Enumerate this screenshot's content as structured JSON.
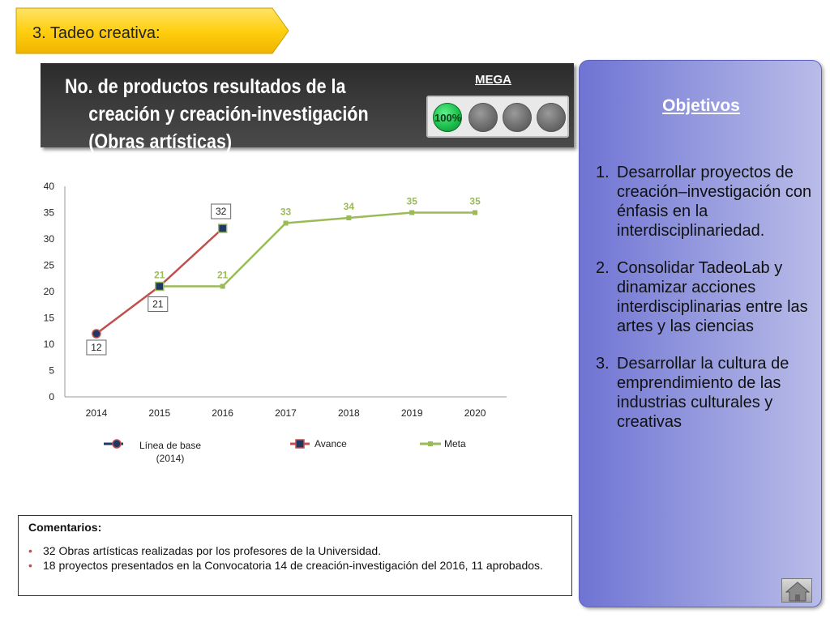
{
  "section": {
    "label": "3. Tadeo creativa:"
  },
  "header": {
    "title_line1": "No. de productos resultados de la",
    "title_line2": "creación y creación-investigación",
    "title_line3": "(Obras artísticas)",
    "mega_label": "MEGA",
    "meter": {
      "value_label": "100%",
      "active_dots": 1,
      "total_dots": 4
    }
  },
  "objectives": {
    "title": "Objetivos",
    "items": [
      {
        "num": "1.",
        "text": "Desarrollar proyectos de creación–investigación con énfasis en la interdisciplinariedad."
      },
      {
        "num": "2.",
        "text": "Consolidar TadeoLab y dinamizar acciones interdisciplinarias entre las artes y las ciencias"
      },
      {
        "num": "3.",
        "text": "Desarrollar la cultura de emprendimiento de las industrias culturales y creativas"
      }
    ]
  },
  "comments": {
    "title": "Comentarios:",
    "items": [
      "32 Obras artísticas realizadas por los profesores de la Universidad.",
      "18 proyectos presentados en la Convocatoria 14 de creación-investigación del 2016, 11 aprobados."
    ]
  },
  "chart_data": {
    "type": "line",
    "categories": [
      "2014",
      "2015",
      "2016",
      "2017",
      "2018",
      "2019",
      "2020"
    ],
    "ylim": [
      0,
      40
    ],
    "yticks": [
      "0",
      "5",
      "10",
      "15",
      "20",
      "25",
      "30",
      "35",
      "40"
    ],
    "series": [
      {
        "name": "Línea de base (2014)",
        "values": [
          12,
          null,
          null,
          null,
          null,
          null,
          null
        ],
        "labels": [
          "12",
          null,
          null,
          null,
          null,
          null,
          null
        ],
        "color": "#1f3864"
      },
      {
        "name": "Avance",
        "values": [
          12,
          21,
          32,
          null,
          null,
          null,
          null
        ],
        "labels": [
          null,
          "21",
          "32",
          null,
          null,
          null,
          null
        ],
        "color": "#c0504d"
      },
      {
        "name": "Meta",
        "values": [
          null,
          21,
          21,
          33,
          34,
          35,
          35
        ],
        "labels": [
          null,
          "21",
          "21",
          "33",
          "34",
          "35",
          "35"
        ],
        "color": "#9bbb59"
      }
    ],
    "legend": {
      "placement": "bottom",
      "labels": [
        "Línea de base",
        "(2014)",
        "Avance",
        "Meta"
      ]
    },
    "grid": false
  },
  "colors": {
    "objectives_bg": "#7b7fd6",
    "header_bg": "#333333",
    "section_tab": "#ffd21f"
  },
  "icons": {
    "home": "home-icon"
  }
}
